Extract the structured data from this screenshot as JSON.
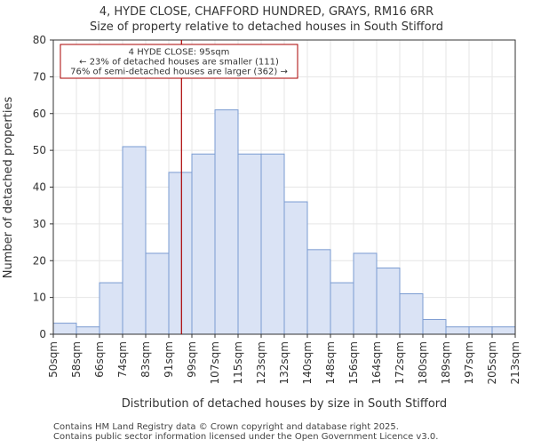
{
  "chart_data": {
    "type": "bar",
    "title": "4, HYDE CLOSE, CHAFFORD HUNDRED, GRAYS, RM16 6RR",
    "subtitle": "Size of property relative to detached houses in South Stifford",
    "xlabel": "Distribution of detached houses by size in South Stifford",
    "ylabel": "Number of detached properties",
    "x_tick_labels": [
      "50sqm",
      "58sqm",
      "66sqm",
      "74sqm",
      "83sqm",
      "91sqm",
      "99sqm",
      "107sqm",
      "115sqm",
      "123sqm",
      "132sqm",
      "140sqm",
      "148sqm",
      "156sqm",
      "164sqm",
      "172sqm",
      "180sqm",
      "189sqm",
      "197sqm",
      "205sqm",
      "213sqm"
    ],
    "values": [
      3,
      2,
      14,
      51,
      22,
      44,
      49,
      61,
      49,
      49,
      36,
      23,
      14,
      22,
      18,
      11,
      4,
      2,
      2,
      2
    ],
    "y_ticks": [
      0,
      10,
      20,
      30,
      40,
      50,
      60,
      70,
      80
    ],
    "ylim": [
      0,
      80
    ],
    "bar_fill": "#dae3f5",
    "bar_stroke": "#7a9bd1",
    "highlight": {
      "value_bin_position": 5.55,
      "line_color": "#aa0000",
      "annotation_lines": [
        "4 HYDE CLOSE: 95sqm",
        "← 23% of detached houses are smaller (111)",
        "76% of semi-detached houses are larger (362) →"
      ]
    },
    "grid": true
  },
  "footer": {
    "line1": "Contains HM Land Registry data © Crown copyright and database right 2025.",
    "line2": "Contains public sector information licensed under the Open Government Licence v3.0."
  }
}
